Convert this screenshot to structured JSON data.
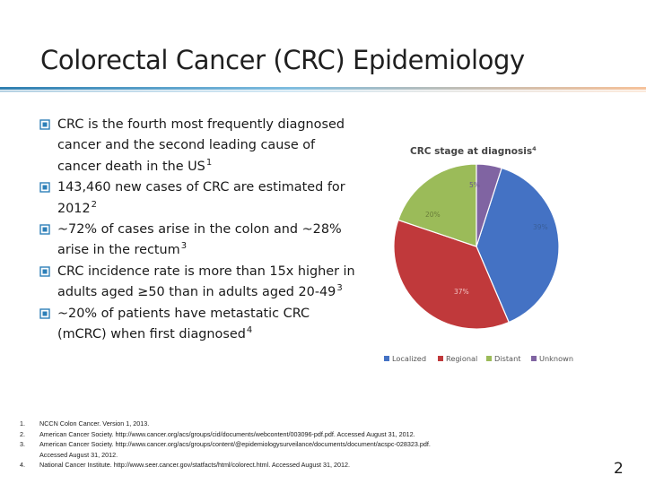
{
  "slide": {
    "title": "Colorectal Cancer (CRC) Epidemiology",
    "page_number": "2",
    "accent_colors": {
      "rule_left": "#2f7fb0",
      "rule_mid": "#7fbde0",
      "rule_right": "#f2a870",
      "bullet_icon": "#2d7fb8"
    }
  },
  "bullets": [
    {
      "text": "CRC is the fourth most frequently diagnosed cancer and the second leading cause of cancer death in the US",
      "sup": "1"
    },
    {
      "text": "143,460 new cases of CRC are estimated for 2012",
      "sup": "2"
    },
    {
      "text": "~72% of cases arise in the colon and ~28% arise in the rectum",
      "sup": "3"
    },
    {
      "text": "CRC incidence rate is more than 15x higher in adults aged ≥50 than in adults aged 20-49",
      "sup": "3"
    },
    {
      "text": "~20% of patients have metastatic CRC (mCRC) when first diagnosed",
      "sup": "4"
    }
  ],
  "chart_data": {
    "type": "pie",
    "title": "CRC stage at diagnosis",
    "title_sup": "4",
    "categories": [
      "Localized",
      "Regional",
      "Distant",
      "Unknown"
    ],
    "values": [
      39,
      37,
      20,
      5
    ],
    "labels": [
      "39%",
      "37%",
      "20%",
      "5%"
    ],
    "colors": [
      "#4472c4",
      "#c0393b",
      "#9bbb59",
      "#8064a2"
    ],
    "legend": "bottom"
  },
  "references": [
    {
      "num": "1.",
      "text": "NCCN Colon Cancer. Version 1, 2013."
    },
    {
      "num": "2.",
      "text": "American Cancer Society. http://www.cancer.org/acs/groups/cid/documents/webcontent/003096-pdf.pdf. Accessed August 31, 2012."
    },
    {
      "num": "3.",
      "text": "American Cancer Society. http://www.cancer.org/acs/groups/content/@epidemiologysurveilance/documents/document/acspc-028323.pdf."
    },
    {
      "num": "",
      "text": "Accessed August 31, 2012."
    },
    {
      "num": "4.",
      "text": "National Cancer Institute. http://www.seer.cancer.gov/statfacts/html/colorect.html. Accessed August 31, 2012."
    }
  ]
}
